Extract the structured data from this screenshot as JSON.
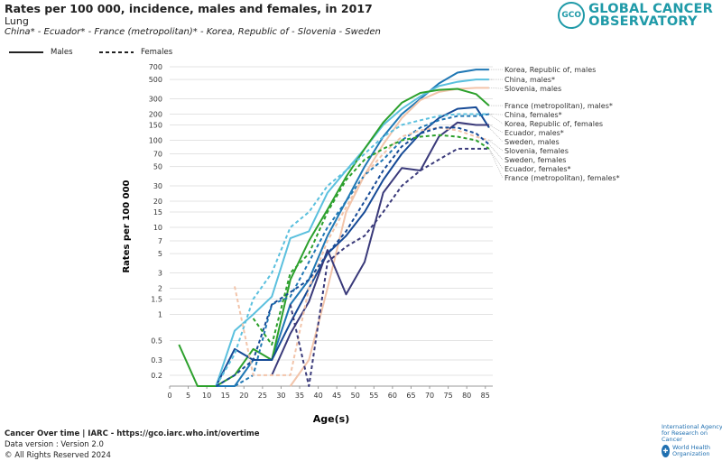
{
  "header": {
    "title": "Rates per 100 000, incidence, males and females, in 2017",
    "subtitle": "Lung",
    "populations": "China* - Ecuador* - France (metropolitan)* - Korea, Republic of - Slovenia - Sweden"
  },
  "legend": {
    "males_label": "Males",
    "females_label": "Females"
  },
  "logo": {
    "badge": "GCO",
    "line1": "GLOBAL CANCER",
    "line2": "OBSERVATORY"
  },
  "footer": {
    "source": "Cancer Over time | IARC - https://gco.iarc.who.int/overtime",
    "data_version": "Data version : Version 2.0",
    "copyright": "© All Rights Reserved 2024",
    "iarc": "International Agency for Research on Cancer",
    "who": "World Health Organization"
  },
  "chart_data": {
    "type": "line",
    "xlabel": "Age(s)",
    "ylabel": "Rates per 100 000",
    "yscale": "log",
    "ylim": [
      0.15,
      700
    ],
    "xlim": [
      0,
      87
    ],
    "x_ticks": [
      "0",
      "5",
      "10",
      "15",
      "20",
      "25",
      "30",
      "35",
      "40",
      "45",
      "50",
      "55",
      "60",
      "65",
      "70",
      "75",
      "80",
      "85"
    ],
    "y_ticks": [
      "0.2",
      "0.3",
      "0.5",
      "1",
      "1.5",
      "2",
      "3",
      "5",
      "7",
      "10",
      "15",
      "20",
      "30",
      "50",
      "70",
      "100",
      "150",
      "200",
      "300",
      "500",
      "700"
    ],
    "grid": true,
    "x": [
      2.5,
      7.5,
      12.5,
      17.5,
      22.5,
      27.5,
      32.5,
      37.5,
      42.5,
      47.5,
      52.5,
      57.5,
      62.5,
      67.5,
      72.5,
      77.5,
      82.5,
      87.5
    ],
    "series": [
      {
        "name": "Korea, Republic of, males",
        "sex": "males",
        "color": "#1f77b4",
        "values": [
          null,
          null,
          0.15,
          0.15,
          0.3,
          0.3,
          1.3,
          2.5,
          8,
          20,
          50,
          110,
          200,
          300,
          450,
          600,
          650,
          650
        ]
      },
      {
        "name": "China, males*",
        "sex": "males",
        "color": "#5bc0de",
        "values": [
          null,
          null,
          0.15,
          0.65,
          1,
          1.6,
          7.5,
          9,
          25,
          45,
          80,
          150,
          230,
          320,
          420,
          470,
          500,
          500
        ]
      },
      {
        "name": "Slovenia, males",
        "sex": "males",
        "color": "#f2c4aa",
        "values": [
          null,
          null,
          null,
          null,
          null,
          null,
          0.15,
          0.3,
          2,
          15,
          40,
          90,
          180,
          290,
          360,
          390,
          400,
          400
        ]
      },
      {
        "name": "France (metropolitan), males*",
        "sex": "males",
        "color": "#2ca02c",
        "values": [
          0.45,
          0.15,
          0.15,
          0.2,
          0.4,
          0.3,
          2.5,
          7,
          16,
          38,
          80,
          160,
          270,
          350,
          380,
          390,
          340,
          250
        ]
      },
      {
        "name": "Sweden, males",
        "sex": "males",
        "color": "#164a96",
        "values": [
          null,
          null,
          0.15,
          0.4,
          0.3,
          0.3,
          0.8,
          2,
          5,
          8,
          15,
          35,
          70,
          120,
          180,
          230,
          240,
          140
        ]
      },
      {
        "name": "Ecuador, males*",
        "sex": "males",
        "color": "#3a3a7a",
        "values": [
          null,
          null,
          null,
          null,
          null,
          0.2,
          0.6,
          1.4,
          5.5,
          1.7,
          4,
          25,
          48,
          45,
          110,
          160,
          150,
          150
        ]
      },
      {
        "name": "China, females*",
        "sex": "females",
        "color": "#5bc0de",
        "values": [
          null,
          null,
          0.15,
          0.35,
          1.5,
          3,
          10,
          15,
          30,
          45,
          70,
          110,
          150,
          170,
          190,
          200,
          200,
          200
        ]
      },
      {
        "name": "Korea, Republic of, females",
        "sex": "females",
        "color": "#1f77b4",
        "values": [
          null,
          null,
          0.15,
          0.15,
          0.2,
          1.3,
          1.6,
          4,
          10,
          20,
          40,
          60,
          100,
          140,
          170,
          190,
          190,
          200
        ]
      },
      {
        "name": "Slovenia, females",
        "sex": "females",
        "color": "#f2c4aa",
        "values": [
          null,
          null,
          null,
          2.1,
          0.2,
          0.2,
          0.2,
          2,
          7,
          17,
          40,
          70,
          110,
          130,
          140,
          130,
          110,
          100
        ]
      },
      {
        "name": "Sweden, females",
        "sex": "females",
        "color": "#164a96",
        "values": [
          null,
          null,
          0.15,
          0.2,
          0.3,
          1.3,
          1.8,
          2.5,
          5,
          9,
          20,
          45,
          85,
          120,
          140,
          140,
          120,
          90
        ]
      },
      {
        "name": "Ecuador, females*",
        "sex": "females",
        "color": "#3a3a7a",
        "values": [
          null,
          null,
          null,
          null,
          null,
          null,
          1.3,
          0.15,
          4,
          6,
          8,
          15,
          30,
          45,
          60,
          80,
          80,
          80
        ]
      },
      {
        "name": "France (metropolitan), females*",
        "sex": "females",
        "color": "#2ca02c",
        "values": [
          null,
          null,
          null,
          null,
          0.9,
          0.45,
          3,
          5,
          15,
          35,
          60,
          80,
          100,
          110,
          115,
          110,
          100,
          80
        ]
      }
    ]
  }
}
